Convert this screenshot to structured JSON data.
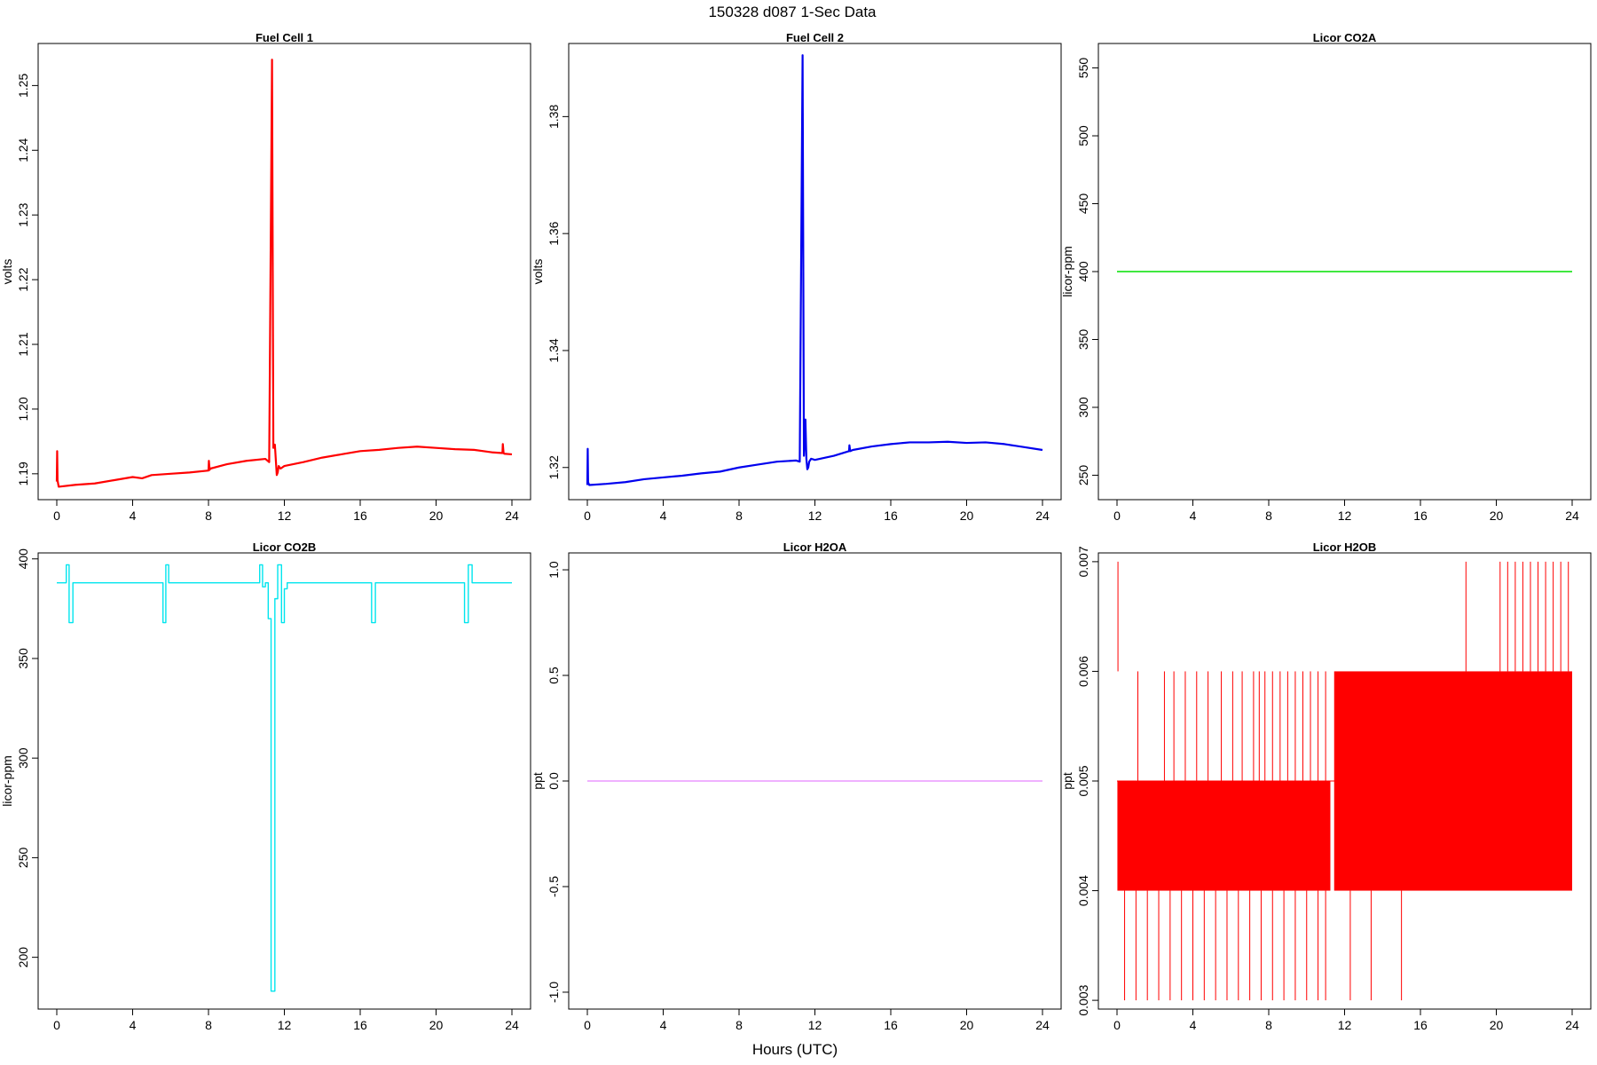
{
  "figure": {
    "title": "150328   d087   1-Sec Data",
    "xlabel": "Hours (UTC)"
  },
  "chart_data": [
    {
      "type": "line",
      "title": "Fuel Cell 1",
      "ylabel": "volts",
      "xlim": [
        0,
        24
      ],
      "ylim": [
        1.186,
        1.2565
      ],
      "xticks": [
        0,
        4,
        8,
        12,
        16,
        20,
        24
      ],
      "xtick_labels": [
        "0",
        "4",
        "8",
        "12",
        "16",
        "20",
        "24"
      ],
      "yticks": [
        1.19,
        1.2,
        1.21,
        1.22,
        1.23,
        1.24,
        1.25
      ],
      "ytick_labels": [
        "1.19",
        "1.20",
        "1.21",
        "1.22",
        "1.23",
        "1.24",
        "1.25"
      ],
      "color": "#ff0000",
      "stroke_width": 2.2,
      "series": [
        {
          "x": [
            0,
            0.02,
            0.04,
            0.1,
            1,
            2,
            3,
            4,
            4.5,
            5,
            6,
            7,
            8,
            8.02,
            8.06,
            8.1,
            9,
            10,
            11,
            11.2,
            11.35,
            11.42,
            11.5,
            11.6,
            11.65,
            11.7,
            11.8,
            12,
            13,
            14,
            15,
            16,
            17,
            18,
            19,
            20,
            21,
            22,
            23,
            23.5,
            23.52,
            23.56,
            23.6,
            24
          ],
          "y": [
            1.1888,
            1.1935,
            1.189,
            1.188,
            1.1883,
            1.1885,
            1.189,
            1.1895,
            1.1893,
            1.1898,
            1.19,
            1.1902,
            1.1905,
            1.192,
            1.1906,
            1.1908,
            1.1915,
            1.192,
            1.1923,
            1.1918,
            1.254,
            1.194,
            1.1945,
            1.1898,
            1.1902,
            1.1912,
            1.1908,
            1.1912,
            1.1918,
            1.1925,
            1.193,
            1.1935,
            1.1937,
            1.194,
            1.1942,
            1.194,
            1.1938,
            1.1937,
            1.1933,
            1.1932,
            1.1946,
            1.1932,
            1.1931,
            1.193
          ]
        }
      ]
    },
    {
      "type": "line",
      "title": "Fuel Cell 2",
      "ylabel": "volts",
      "xlim": [
        0,
        24
      ],
      "ylim": [
        1.3145,
        1.3925
      ],
      "xticks": [
        0,
        4,
        8,
        12,
        16,
        20,
        24
      ],
      "xtick_labels": [
        "0",
        "4",
        "8",
        "12",
        "16",
        "20",
        "24"
      ],
      "yticks": [
        1.32,
        1.34,
        1.36,
        1.38
      ],
      "ytick_labels": [
        "1.32",
        "1.34",
        "1.36",
        "1.38"
      ],
      "color": "#0000ee",
      "stroke_width": 2.2,
      "series": [
        {
          "x": [
            0,
            0.02,
            0.04,
            0.1,
            1,
            2,
            3,
            4,
            5,
            6,
            7,
            8,
            9,
            10,
            11,
            11.2,
            11.35,
            11.42,
            11.5,
            11.55,
            11.6,
            11.65,
            11.7,
            11.8,
            12,
            13,
            13.8,
            13.82,
            13.86,
            14,
            15,
            16,
            17,
            18,
            19,
            20,
            21,
            22,
            23,
            24
          ],
          "y": [
            1.317,
            1.3232,
            1.3175,
            1.317,
            1.3172,
            1.3175,
            1.318,
            1.3183,
            1.3186,
            1.319,
            1.3193,
            1.32,
            1.3205,
            1.321,
            1.3212,
            1.321,
            1.3905,
            1.322,
            1.3282,
            1.3215,
            1.3197,
            1.32,
            1.321,
            1.3215,
            1.3213,
            1.322,
            1.3228,
            1.3238,
            1.3228,
            1.323,
            1.3236,
            1.324,
            1.3243,
            1.3243,
            1.3244,
            1.3242,
            1.3243,
            1.324,
            1.3235,
            1.323
          ]
        }
      ]
    },
    {
      "type": "line",
      "title": "Licor CO2A",
      "ylabel": "licor-ppm",
      "xlim": [
        0,
        24
      ],
      "ylim": [
        232,
        568
      ],
      "xticks": [
        0,
        4,
        8,
        12,
        16,
        20,
        24
      ],
      "xtick_labels": [
        "0",
        "4",
        "8",
        "12",
        "16",
        "20",
        "24"
      ],
      "yticks": [
        250,
        300,
        350,
        400,
        450,
        500,
        550
      ],
      "ytick_labels": [
        "250",
        "300",
        "350",
        "400",
        "450",
        "500",
        "550"
      ],
      "color": "#00e000",
      "stroke_width": 1.4,
      "series": [
        {
          "x": [
            0,
            24
          ],
          "y": [
            400,
            400
          ]
        }
      ]
    },
    {
      "type": "line",
      "title": "Licor CO2B",
      "ylabel": "licor-ppm",
      "xlim": [
        0,
        24
      ],
      "ylim": [
        174,
        403
      ],
      "xticks": [
        0,
        4,
        8,
        12,
        16,
        20,
        24
      ],
      "xtick_labels": [
        "0",
        "4",
        "8",
        "12",
        "16",
        "20",
        "24"
      ],
      "yticks": [
        200,
        250,
        300,
        350,
        400
      ],
      "ytick_labels": [
        "200",
        "250",
        "300",
        "350",
        "400"
      ],
      "color": "#00e5ee",
      "stroke_width": 1.4,
      "series": [
        {
          "x": [
            0,
            0.5,
            0.5,
            0.65,
            0.65,
            0.85,
            0.85,
            5.6,
            5.6,
            5.75,
            5.75,
            5.9,
            5.9,
            10.7,
            10.7,
            10.85,
            10.85,
            11.0,
            11.0,
            11.15,
            11.15,
            11.3,
            11.3,
            11.5,
            11.5,
            11.65,
            11.65,
            11.85,
            11.85,
            12.0,
            12.0,
            12.15,
            12.15,
            16.6,
            16.6,
            16.8,
            16.8,
            21.5,
            21.5,
            21.7,
            21.7,
            21.9,
            21.9,
            24
          ],
          "y": [
            388,
            388,
            397,
            397,
            368,
            368,
            388,
            388,
            368,
            368,
            397,
            397,
            388,
            388,
            397,
            397,
            386,
            386,
            388,
            388,
            370,
            370,
            183,
            183,
            380,
            380,
            397,
            397,
            368,
            368,
            385,
            385,
            388,
            388,
            368,
            368,
            388,
            388,
            368,
            368,
            397,
            397,
            388,
            388
          ]
        }
      ]
    },
    {
      "type": "line",
      "title": "Licor H2OA",
      "ylabel": "ppt",
      "xlim": [
        0,
        24
      ],
      "ylim": [
        -1.08,
        1.08
      ],
      "xticks": [
        0,
        4,
        8,
        12,
        16,
        20,
        24
      ],
      "xtick_labels": [
        "0",
        "4",
        "8",
        "12",
        "16",
        "20",
        "24"
      ],
      "yticks": [
        -1.0,
        -0.5,
        0.0,
        0.5,
        1.0
      ],
      "ytick_labels": [
        "-1.0",
        "-0.5",
        "0.0",
        "0.5",
        "1.0"
      ],
      "color": "#e066ff",
      "stroke_width": 1.0,
      "series": [
        {
          "x": [
            0,
            24
          ],
          "y": [
            0,
            0
          ]
        }
      ]
    },
    {
      "type": "line",
      "title": "Licor H2OB",
      "ylabel": "ppt",
      "xlim": [
        0,
        24
      ],
      "ylim": [
        0.00292,
        0.00708
      ],
      "xticks": [
        0,
        4,
        8,
        12,
        16,
        20,
        24
      ],
      "xtick_labels": [
        "0",
        "4",
        "8",
        "12",
        "16",
        "20",
        "24"
      ],
      "yticks": [
        0.003,
        0.004,
        0.005,
        0.006,
        0.007
      ],
      "ytick_labels": [
        "0.003",
        "0.004",
        "0.005",
        "0.006",
        "0.007"
      ],
      "color": "#ff0000",
      "stroke_width": 1.0,
      "series": [
        {
          "name": "",
          "x": [
            0,
            24
          ],
          "y": [
            0.005,
            0.005
          ]
        }
      ],
      "bands": [
        {
          "x": [
            0.02,
            11.25
          ],
          "y": [
            0.004,
            0.005
          ]
        },
        {
          "x": [
            11.45,
            24
          ],
          "y": [
            0.005,
            0.006
          ]
        },
        {
          "x": [
            11.45,
            24
          ],
          "y": [
            0.004,
            0.005
          ]
        }
      ],
      "spikes_to_0007": [
        0.05,
        18.4,
        20.2,
        20.6,
        21.0,
        21.4,
        21.8,
        22.2,
        22.6,
        23.0,
        23.4,
        23.8
      ],
      "spikes_to_0006": [
        1.1,
        2.5,
        3.0,
        3.6,
        4.2,
        4.8,
        5.5,
        6.1,
        6.6,
        7.2,
        7.5,
        7.8,
        8.2,
        8.6,
        9.0,
        9.4,
        9.8,
        10.2,
        10.6,
        11.0
      ],
      "spikes_to_0003": [
        0.4,
        1.0,
        1.6,
        2.2,
        2.8,
        3.4,
        4.0,
        4.6,
        5.2,
        5.8,
        6.4,
        7.0,
        7.6,
        8.2,
        8.8,
        9.4,
        10.0,
        10.6,
        11.0,
        12.3,
        13.4,
        15.0
      ]
    }
  ]
}
